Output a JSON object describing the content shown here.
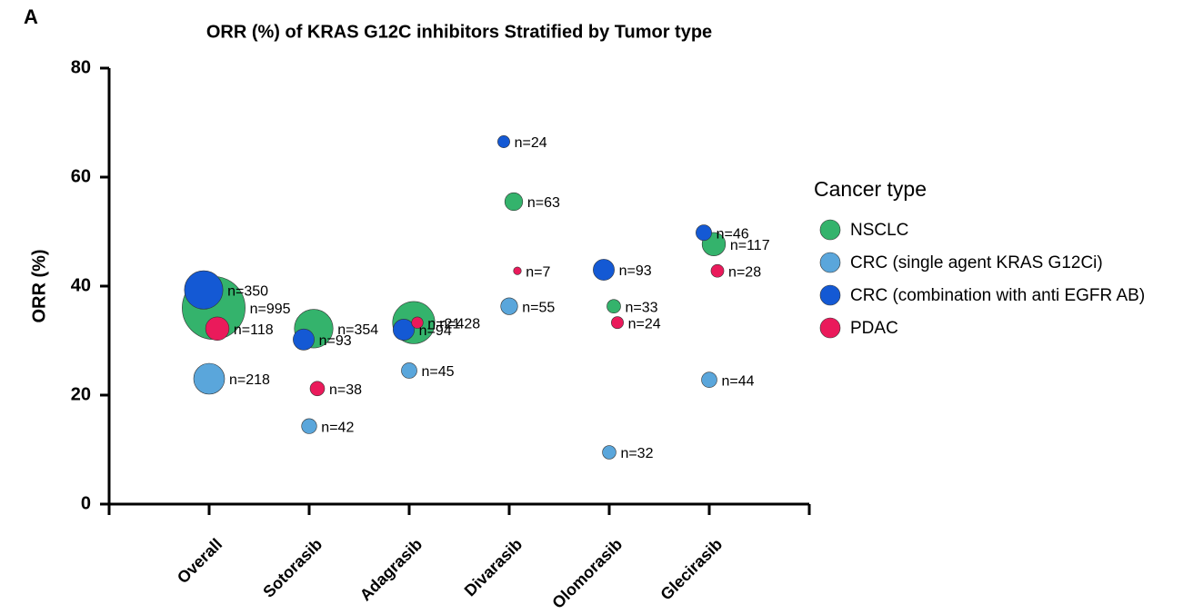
{
  "panel_label": "A",
  "chart_data": {
    "type": "bubble",
    "title": "ORR (%) of KRAS G12C inhibitors Stratified by Tumor type",
    "y_label": "ORR  (%)",
    "categories": [
      null,
      "Overall",
      "Sotorasib",
      "Adagrasib",
      "Divarasib",
      "Olomorasib",
      "Glecirasib",
      null
    ],
    "ylim": [
      0,
      80
    ],
    "yticks": [
      0,
      20,
      40,
      60,
      80
    ],
    "legend_title": "Cancer type",
    "legend_position": "right",
    "series": [
      {
        "name": "NSCLC",
        "color": "#34b36c",
        "values": [
          null,
          36,
          32.2,
          33.3,
          55.5,
          36.3,
          47.7,
          null
        ],
        "sizes": [
          null,
          995,
          354,
          428,
          63,
          33,
          117,
          null
        ],
        "size_labels": [
          null,
          "n=995",
          "n=354",
          "n=428",
          "n=63",
          "n=33",
          "n=117",
          null
        ]
      },
      {
        "name": "CRC (single agent KRAS G12Ci)",
        "color": "#5aa6db",
        "values": [
          null,
          23,
          14.3,
          24.5,
          36.3,
          9.5,
          22.8,
          null
        ],
        "sizes": [
          null,
          218,
          42,
          45,
          55,
          32,
          44,
          null
        ],
        "size_labels": [
          null,
          "n=218",
          "n=42",
          "n=45",
          "n=55",
          "n=32",
          "n=44",
          null
        ]
      },
      {
        "name": "CRC (combination with anti EGFR AB)",
        "color": "#1459d4",
        "values": [
          null,
          39.3,
          30.2,
          32,
          66.5,
          43,
          49.8,
          null
        ],
        "sizes": [
          null,
          350,
          93,
          94,
          24,
          93,
          46,
          null
        ],
        "size_labels": [
          null,
          "n=350",
          "n=93",
          "n=94",
          "n=24",
          "n=93",
          "n=46",
          null
        ]
      },
      {
        "name": "PDAC",
        "color": "#ea1a5b",
        "values": [
          null,
          32.2,
          21.2,
          33.3,
          42.8,
          33.3,
          42.8,
          null
        ],
        "sizes": [
          null,
          118,
          38,
          21,
          7,
          24,
          28,
          null
        ],
        "size_labels": [
          null,
          "n=118",
          "n=38",
          "n=21",
          "n=7",
          "n=24",
          "n=28",
          null
        ]
      }
    ]
  }
}
